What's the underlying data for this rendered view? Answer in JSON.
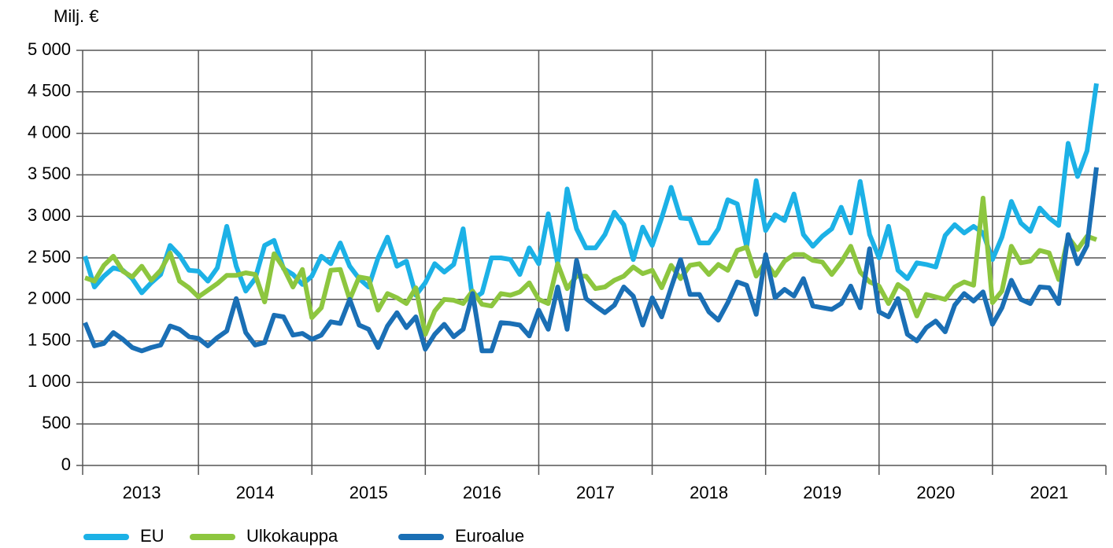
{
  "chart_data": {
    "type": "line",
    "y_label": "Milj. €",
    "categories": [
      "2013",
      null,
      null,
      null,
      null,
      null,
      null,
      null,
      null,
      null,
      null,
      null,
      "2014",
      null,
      null,
      null,
      null,
      null,
      null,
      null,
      null,
      null,
      null,
      null,
      "2015",
      null,
      null,
      null,
      null,
      null,
      null,
      null,
      null,
      null,
      null,
      null,
      "2016",
      null,
      null,
      null,
      null,
      null,
      null,
      null,
      null,
      null,
      null,
      null,
      "2017",
      null,
      null,
      null,
      null,
      null,
      null,
      null,
      null,
      null,
      null,
      null,
      "2018",
      null,
      null,
      null,
      null,
      null,
      null,
      null,
      null,
      null,
      null,
      null,
      "2019",
      null,
      null,
      null,
      null,
      null,
      null,
      null,
      null,
      null,
      null,
      null,
      "2020",
      null,
      null,
      null,
      null,
      null,
      null,
      null,
      null,
      null,
      null,
      null,
      "2021",
      null,
      null,
      null,
      null,
      null,
      null,
      null,
      null,
      null,
      null,
      null
    ],
    "series": [
      {
        "name": "EU",
        "color": "#1cb1e6",
        "values": [
          2520,
          2150,
          2280,
          2380,
          2350,
          2250,
          2080,
          2200,
          2300,
          2650,
          2530,
          2350,
          2340,
          2220,
          2380,
          2880,
          2400,
          2100,
          2250,
          2650,
          2710,
          2370,
          2300,
          2180,
          2280,
          2520,
          2430,
          2680,
          2400,
          2250,
          2150,
          2500,
          2750,
          2400,
          2460,
          2050,
          2200,
          2430,
          2330,
          2420,
          2850,
          2000,
          2080,
          2500,
          2500,
          2480,
          2300,
          2620,
          2430,
          3030,
          2430,
          3330,
          2850,
          2620,
          2620,
          2780,
          3050,
          2900,
          2480,
          2870,
          2650,
          2980,
          3350,
          2980,
          2970,
          2680,
          2680,
          2850,
          3200,
          3150,
          2630,
          3430,
          2830,
          3020,
          2950,
          3270,
          2780,
          2640,
          2760,
          2850,
          3110,
          2800,
          3420,
          2780,
          2500,
          2880,
          2350,
          2250,
          2440,
          2420,
          2390,
          2770,
          2900,
          2800,
          2880,
          2800,
          2480,
          2750,
          3180,
          2920,
          2820,
          3100,
          2980,
          2890,
          3880,
          3480,
          3790,
          4600
        ]
      },
      {
        "name": "Ulkokauppa",
        "color": "#8dc63f",
        "values": [
          2260,
          2220,
          2410,
          2520,
          2340,
          2270,
          2400,
          2230,
          2350,
          2560,
          2220,
          2140,
          2030,
          2110,
          2190,
          2290,
          2290,
          2320,
          2300,
          1970,
          2550,
          2380,
          2150,
          2360,
          1780,
          1900,
          2350,
          2360,
          2000,
          2270,
          2250,
          1870,
          2070,
          2020,
          1950,
          2140,
          1580,
          1860,
          2000,
          1990,
          1950,
          2100,
          1940,
          1920,
          2070,
          2050,
          2090,
          2200,
          2000,
          1950,
          2430,
          2130,
          2280,
          2280,
          2130,
          2150,
          2230,
          2280,
          2390,
          2310,
          2350,
          2140,
          2410,
          2250,
          2410,
          2430,
          2300,
          2420,
          2350,
          2590,
          2630,
          2280,
          2450,
          2290,
          2460,
          2540,
          2540,
          2470,
          2450,
          2300,
          2450,
          2640,
          2330,
          2210,
          2160,
          1950,
          2180,
          2100,
          1800,
          2060,
          2030,
          2000,
          2150,
          2210,
          2170,
          3220,
          1960,
          2100,
          2640,
          2440,
          2460,
          2590,
          2560,
          2240,
          2750,
          2600,
          2760,
          2720
        ]
      },
      {
        "name": "Euroalue",
        "color": "#1a6fb5",
        "values": [
          1720,
          1440,
          1470,
          1600,
          1520,
          1420,
          1380,
          1420,
          1450,
          1680,
          1640,
          1550,
          1530,
          1440,
          1540,
          1620,
          2010,
          1600,
          1450,
          1480,
          1810,
          1790,
          1570,
          1590,
          1520,
          1570,
          1730,
          1710,
          2000,
          1690,
          1640,
          1420,
          1680,
          1840,
          1660,
          1790,
          1400,
          1580,
          1700,
          1550,
          1640,
          2070,
          1380,
          1380,
          1720,
          1710,
          1690,
          1560,
          1870,
          1640,
          2150,
          1640,
          2470,
          2010,
          1920,
          1840,
          1930,
          2150,
          2040,
          1690,
          2020,
          1790,
          2140,
          2480,
          2060,
          2060,
          1850,
          1750,
          1960,
          2210,
          2170,
          1820,
          2540,
          2020,
          2120,
          2040,
          2250,
          1920,
          1900,
          1880,
          1950,
          2160,
          1900,
          2610,
          1850,
          1790,
          2010,
          1580,
          1500,
          1660,
          1740,
          1610,
          1930,
          2070,
          1980,
          2090,
          1700,
          1900,
          2230,
          2000,
          1950,
          2150,
          2140,
          1950,
          2780,
          2430,
          2650,
          3590
        ]
      }
    ],
    "ylim": [
      0,
      5000
    ],
    "yticks": [
      0,
      500,
      {
        "value": 1000,
        "label": "1 000"
      },
      {
        "value": 1500,
        "label": "1 500"
      },
      {
        "value": 2000,
        "label": "2 000"
      },
      {
        "value": 2500,
        "label": "2 500"
      },
      {
        "value": 3000,
        "label": "3 000"
      },
      {
        "value": 3500,
        "label": "3 500"
      },
      {
        "value": 4000,
        "label": "4 000"
      },
      {
        "value": 4500,
        "label": "4 500"
      },
      {
        "value": 5000,
        "label": "5 000"
      }
    ],
    "grid": true,
    "legend": "bottom"
  }
}
